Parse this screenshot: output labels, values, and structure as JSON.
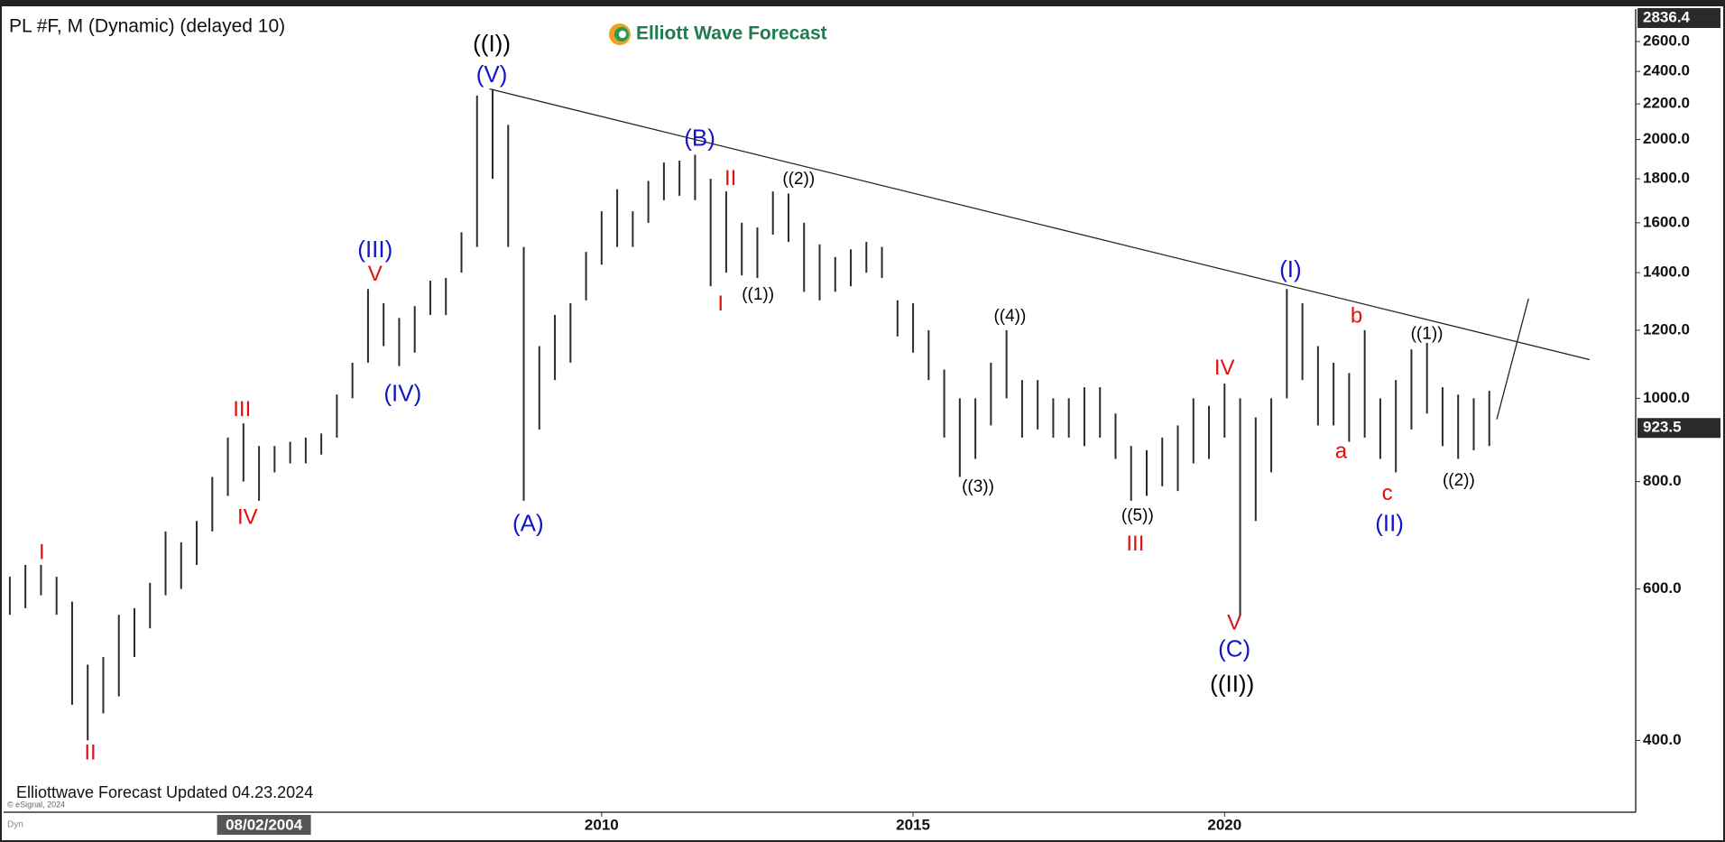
{
  "chart_data": {
    "type": "hlbar",
    "title": "PL #F, M (Dynamic) (delayed 10)",
    "logo": "Elliott Wave Forecast",
    "footer": "Elliottwave Forecast Updated 04.23.2024",
    "copyright": "© eSignal, 2024",
    "mode": "Dyn",
    "log_scale": true,
    "color": "#2b2b2b",
    "x": [
      2000.5,
      2000.75,
      2001,
      2001.25,
      2001.5,
      2001.75,
      2002,
      2002.25,
      2002.5,
      2002.75,
      2003,
      2003.25,
      2003.5,
      2003.75,
      2004,
      2004.25,
      2004.5,
      2004.75,
      2005,
      2005.25,
      2005.5,
      2005.75,
      2006,
      2006.25,
      2006.5,
      2006.75,
      2007,
      2007.25,
      2007.5,
      2007.75,
      2008,
      2008.25,
      2008.5,
      2008.75,
      2009,
      2009.25,
      2009.5,
      2009.75,
      2010,
      2010.25,
      2010.5,
      2010.75,
      2011,
      2011.25,
      2011.5,
      2011.75,
      2012,
      2012.25,
      2012.5,
      2012.75,
      2013,
      2013.25,
      2013.5,
      2013.75,
      2014,
      2014.25,
      2014.5,
      2014.75,
      2015,
      2015.25,
      2015.5,
      2015.75,
      2016,
      2016.25,
      2016.5,
      2016.75,
      2017,
      2017.25,
      2017.5,
      2017.75,
      2018,
      2018.25,
      2018.5,
      2018.75,
      2019,
      2019.25,
      2019.5,
      2019.75,
      2020,
      2020.25,
      2020.5,
      2020.75,
      2021,
      2021.25,
      2021.5,
      2021.75,
      2022,
      2022.25,
      2022.5,
      2022.75,
      2023,
      2023.25,
      2023.5,
      2023.75,
      2024,
      2024.25
    ],
    "low": [
      560,
      570,
      590,
      560,
      440,
      400,
      430,
      450,
      500,
      540,
      590,
      600,
      640,
      700,
      770,
      800,
      760,
      820,
      840,
      840,
      860,
      900,
      1000,
      1100,
      1150,
      1090,
      1130,
      1250,
      1250,
      1400,
      1500,
      1800,
      1500,
      760,
      920,
      1050,
      1100,
      1300,
      1430,
      1500,
      1500,
      1600,
      1700,
      1720,
      1700,
      1350,
      1400,
      1390,
      1380,
      1550,
      1520,
      1330,
      1300,
      1330,
      1350,
      1400,
      1380,
      1180,
      1130,
      1050,
      900,
      810,
      850,
      930,
      1000,
      900,
      920,
      900,
      900,
      880,
      900,
      850,
      760,
      770,
      790,
      780,
      840,
      850,
      900,
      560,
      720,
      820,
      1000,
      1050,
      930,
      930,
      890,
      900,
      850,
      820,
      920,
      960,
      880,
      850,
      870,
      880
    ],
    "high": [
      620,
      640,
      640,
      620,
      580,
      490,
      500,
      560,
      570,
      610,
      700,
      680,
      720,
      810,
      900,
      935,
      880,
      880,
      890,
      900,
      910,
      1010,
      1100,
      1340,
      1290,
      1240,
      1280,
      1370,
      1380,
      1560,
      2250,
      2290,
      2080,
      1500,
      1150,
      1250,
      1290,
      1480,
      1650,
      1750,
      1650,
      1790,
      1880,
      1890,
      1920,
      1800,
      1740,
      1600,
      1580,
      1740,
      1730,
      1600,
      1510,
      1460,
      1490,
      1520,
      1500,
      1300,
      1290,
      1200,
      1080,
      1000,
      1000,
      1100,
      1200,
      1050,
      1050,
      1000,
      1000,
      1030,
      1030,
      960,
      880,
      870,
      900,
      930,
      1000,
      980,
      1040,
      1000,
      950,
      1000,
      1340,
      1290,
      1150,
      1100,
      1070,
      1200,
      1000,
      1050,
      1140,
      1160,
      1030,
      1010,
      1000,
      1020
    ],
    "xlim": [
      2000.4,
      2026.6
    ],
    "ylim": [
      330,
      2836.4
    ],
    "xticks": [
      2010,
      2015,
      2020
    ],
    "x_cursor": {
      "value": 2004.58,
      "label": "08/02/2004"
    },
    "yticks": [
      {
        "value": 400,
        "label": "400.0"
      },
      {
        "value": 600,
        "label": "600.0"
      },
      {
        "value": 800,
        "label": "800.0"
      },
      {
        "value": 1000,
        "label": "1000.0"
      },
      {
        "value": 1200,
        "label": "1200.0"
      },
      {
        "value": 1400,
        "label": "1400.0"
      },
      {
        "value": 1600,
        "label": "1600.0"
      },
      {
        "value": 1800,
        "label": "1800.0"
      },
      {
        "value": 2000,
        "label": "2000.0"
      },
      {
        "value": 2200,
        "label": "2200.0"
      },
      {
        "value": 2400,
        "label": "2400.0"
      },
      {
        "value": 2600,
        "label": "2600.0"
      }
    ],
    "top_price": {
      "value": 2836.4,
      "label": "2836.4"
    },
    "last_price": {
      "value": 923.5,
      "label": "923.5"
    },
    "lines": [
      {
        "x": [
          2008.2,
          2025.86
        ],
        "y": [
          2290,
          1109
        ]
      },
      {
        "x": [
          2024.37,
          2024.88
        ],
        "y": [
          945,
          1306
        ]
      }
    ],
    "annotations": [
      {
        "text": "((I))",
        "color": "#000000"
      },
      {
        "text": "(V)",
        "color": "#1515c8"
      },
      {
        "text": "(III)",
        "color": "#1515c8"
      },
      {
        "text": "V",
        "color": "#e01010"
      },
      {
        "text": "(IV)",
        "color": "#1515c8"
      },
      {
        "text": "III",
        "color": "#e01010"
      },
      {
        "text": "IV",
        "color": "#e01010"
      },
      {
        "text": "I",
        "color": "#e01010"
      },
      {
        "text": "II",
        "color": "#e01010"
      },
      {
        "text": "(A)",
        "color": "#1515c8"
      },
      {
        "text": "(B)",
        "color": "#1515c8"
      },
      {
        "text": "II",
        "color": "#e01010"
      },
      {
        "text": "I",
        "color": "#e01010"
      },
      {
        "text": "((1))",
        "color": "#000000"
      },
      {
        "text": "((2))",
        "color": "#000000"
      },
      {
        "text": "((4))",
        "color": "#000000"
      },
      {
        "text": "((3))",
        "color": "#000000"
      },
      {
        "text": "((5))",
        "color": "#000000"
      },
      {
        "text": "III",
        "color": "#e01010"
      },
      {
        "text": "IV",
        "color": "#e01010"
      },
      {
        "text": "V",
        "color": "#e01010"
      },
      {
        "text": "(C)",
        "color": "#1515c8"
      },
      {
        "text": "((II))",
        "color": "#000000"
      },
      {
        "text": "(I)",
        "color": "#1515c8"
      },
      {
        "text": "b",
        "color": "#e01010"
      },
      {
        "text": "a",
        "color": "#e01010"
      },
      {
        "text": "c",
        "color": "#e01010"
      },
      {
        "text": "(II)",
        "color": "#1515c8"
      },
      {
        "text": "((1))",
        "color": "#000000"
      },
      {
        "text": "((2))",
        "color": "#000000"
      }
    ]
  }
}
